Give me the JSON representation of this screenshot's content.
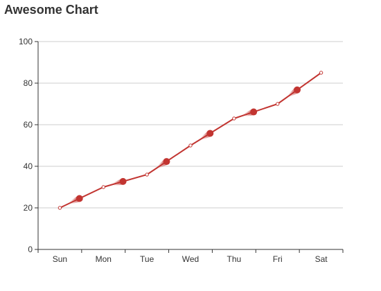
{
  "chart_data": {
    "type": "line",
    "title": "Awesome Chart",
    "xlabel": "",
    "ylabel": "",
    "categories": [
      "Sun",
      "Mon",
      "Tue",
      "Wed",
      "Thu",
      "Fri",
      "Sat"
    ],
    "series": [
      {
        "values": [
          20,
          30,
          36,
          50,
          63,
          70,
          85
        ]
      }
    ],
    "ylim": [
      0,
      100
    ],
    "yticks": [
      0,
      20,
      40,
      60,
      80,
      100
    ],
    "grid": true,
    "legend": "none",
    "line_color": "#c23531",
    "axis_color": "#333333",
    "grid_color": "#cccccc"
  }
}
